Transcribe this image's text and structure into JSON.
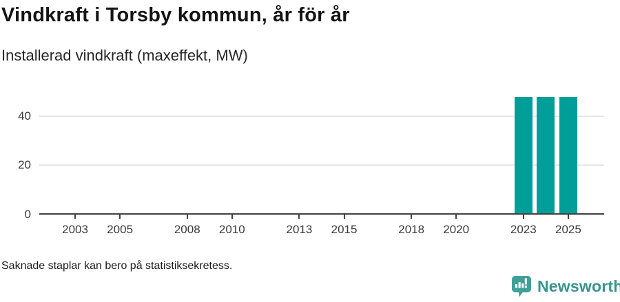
{
  "header": {
    "title": "Vindkraft i Torsby kommun, år för år",
    "subtitle": "Installerad vindkraft (maxeffekt, MW)"
  },
  "footer": {
    "note": "Saknade staplar kan bero på statistiksekretess.",
    "brand": {
      "name": "Newsworthy",
      "icon": "newsworthy-speech-bubble-barchart-icon"
    }
  },
  "colors": {
    "bar": "#009e98",
    "axis": "#414141",
    "grid": "#e7e7e7",
    "tick_label": "#3a3a3a",
    "logo_icon": "#3fa09a",
    "logo_text": "#38948e"
  },
  "chart_data": {
    "type": "bar",
    "title": "Vindkraft i Torsby kommun, år för år",
    "ylabel": "Installerad vindkraft (maxeffekt, MW)",
    "xlabel": "",
    "x": [
      2023,
      2024,
      2025
    ],
    "values": [
      47.5,
      47.5,
      47.5
    ],
    "xticks": [
      2003,
      2005,
      2008,
      2010,
      2013,
      2015,
      2018,
      2020,
      2023,
      2025
    ],
    "yticks": [
      0,
      20,
      40
    ],
    "xlim": [
      2001.4,
      2026.6
    ],
    "ylim": [
      0,
      50
    ],
    "bar_width_years": 0.8,
    "grid": "horizontal",
    "legend": "none",
    "annotation": "Saknade staplar kan bero på statistiksekretess."
  }
}
